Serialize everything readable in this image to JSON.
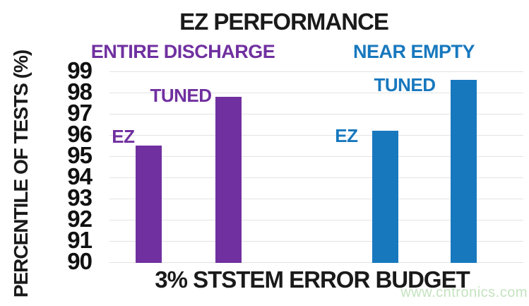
{
  "chart_data": {
    "type": "bar",
    "title": "EZ PERFORMANCE",
    "ylabel": "PERCENTILE OF TESTS (%)",
    "xlabel": "3% STSTEM ERROR BUDGET",
    "ylim": [
      90,
      99
    ],
    "yticks": [
      99,
      98,
      97,
      96,
      95,
      94,
      93,
      92,
      91,
      90
    ],
    "grid": "horizontal light-gray lines at each integer tick",
    "legend_position": "none (group and bar labels drawn inside plot)",
    "groups": [
      {
        "name": "ENTIRE DISCHARGE",
        "color": "#7030a0",
        "bars": [
          {
            "label": "EZ",
            "value": 95.5
          },
          {
            "label": "TUNED",
            "value": 97.8
          }
        ]
      },
      {
        "name": "NEAR EMPTY",
        "color": "#1878be",
        "bars": [
          {
            "label": "EZ",
            "value": 96.2
          },
          {
            "label": "TUNED",
            "value": 98.6
          }
        ]
      }
    ]
  },
  "watermark": {
    "text": "www.cntronics.com",
    "color": "#c5e3c0"
  },
  "colors": {
    "background": "#ffffff",
    "title_text": "#1a1a1a",
    "gridline": "#e3e3e3",
    "purple_series": "#7030a0",
    "blue_series": "#1878be"
  }
}
